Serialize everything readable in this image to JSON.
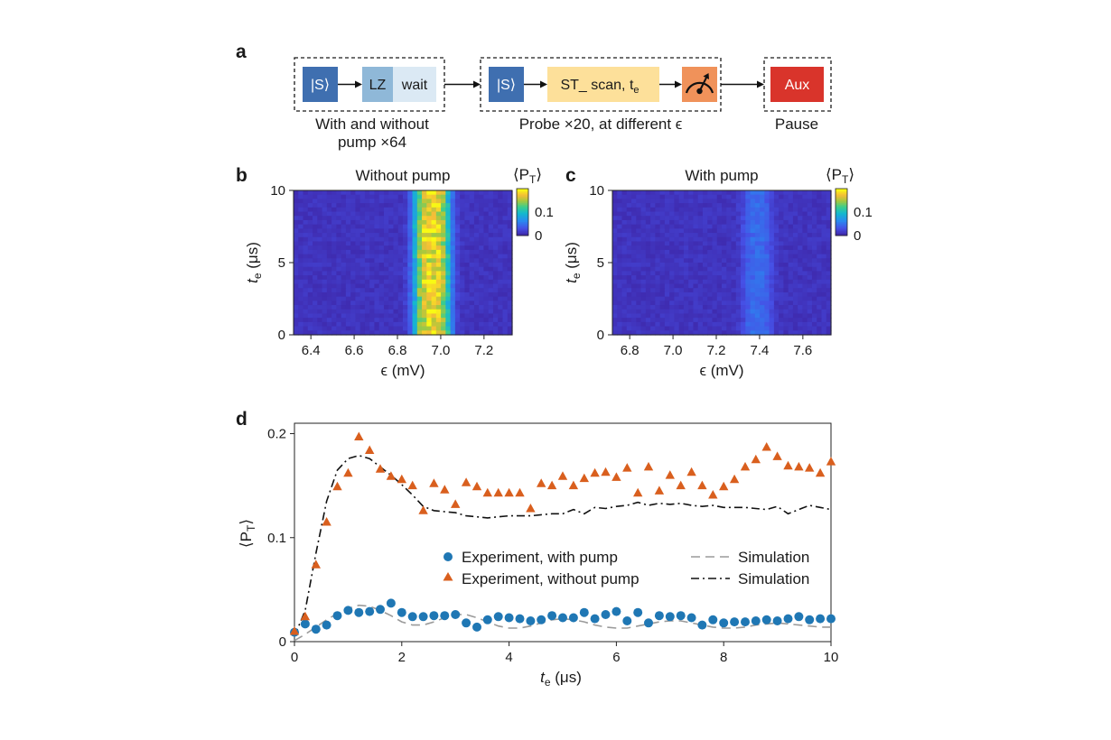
{
  "panel_labels": {
    "a": "a",
    "b": "b",
    "c": "c",
    "d": "d"
  },
  "colors": {
    "s_box": "#3f6fb0",
    "lz_box": "#8fb8d8",
    "wait_box": "#dbe9f4",
    "st_box": "#fde09a",
    "meas_box": "#f0925a",
    "aux_box": "#d9342b",
    "with_pump": "#1f77b4",
    "without_pump": "#d95f1e",
    "sim_with": "#9a9a9a",
    "sim_without": "#111111"
  },
  "schematic": {
    "s_label": "|S⟩",
    "lz_label": "LZ",
    "wait_label": "wait",
    "st_label_main": "ST_ scan, t",
    "st_label_sub": "e",
    "aux_label": "Aux",
    "caption1_line1": "With and without",
    "caption1_line2": "pump ×64",
    "caption2": "Probe ×20, at different ϵ",
    "caption3": "Pause"
  },
  "chart_data": [
    {
      "id": "b",
      "type": "heatmap",
      "title": "Without pump",
      "xlabel": "ϵ (mV)",
      "ylabel_main": "t",
      "ylabel_sub": "e",
      "ylabel_unit": " (μs)",
      "xlim": [
        6.32,
        7.33
      ],
      "ylim": [
        0,
        10
      ],
      "xticks": [
        "6.4",
        "6.6",
        "6.8",
        "7.0",
        "7.2"
      ],
      "xtick_values": [
        6.4,
        6.6,
        6.8,
        7.0,
        7.2
      ],
      "yticks": [
        "0",
        "5",
        "10"
      ],
      "ytick_values": [
        0,
        5,
        10
      ],
      "colorbar_title": "⟨P",
      "colorbar_sub": "T",
      "colorbar_close": "⟩",
      "colorbar_ticks": [
        "0",
        "0.1"
      ],
      "colorbar_tick_values": [
        0,
        0.1
      ],
      "colorbar_range": [
        0,
        0.2
      ],
      "peak_center": 6.96,
      "peak_width": 0.085,
      "peak_amplitude": 0.17
    },
    {
      "id": "c",
      "type": "heatmap",
      "title": "With pump",
      "xlabel": "ϵ (mV)",
      "ylabel_main": "t",
      "ylabel_sub": "e",
      "ylabel_unit": " (μs)",
      "xlim": [
        6.72,
        7.73
      ],
      "ylim": [
        0,
        10
      ],
      "xticks": [
        "6.8",
        "7.0",
        "7.2",
        "7.4",
        "7.6"
      ],
      "xtick_values": [
        6.8,
        7.0,
        7.2,
        7.4,
        7.6
      ],
      "yticks": [
        "0",
        "5",
        "10"
      ],
      "ytick_values": [
        0,
        5,
        10
      ],
      "colorbar_title": "⟨P",
      "colorbar_sub": "T",
      "colorbar_close": "⟩",
      "colorbar_ticks": [
        "0",
        "0.1"
      ],
      "colorbar_tick_values": [
        0,
        0.1
      ],
      "colorbar_range": [
        0,
        0.2
      ],
      "peak_center": 7.39,
      "peak_width": 0.07,
      "peak_amplitude": 0.035
    },
    {
      "id": "d",
      "type": "scatter",
      "xlabel_main": "t",
      "xlabel_sub": "e",
      "xlabel_unit": " (μs)",
      "ylabel_main": "⟨P",
      "ylabel_sub": "T",
      "ylabel_close": "⟩",
      "xlim": [
        0,
        10
      ],
      "ylim": [
        0,
        0.21
      ],
      "xticks": [
        "0",
        "2",
        "4",
        "6",
        "8",
        "10"
      ],
      "xtick_values": [
        0,
        2,
        4,
        6,
        8,
        10
      ],
      "yticks": [
        "0",
        "0.1",
        "0.2"
      ],
      "ytick_values": [
        0,
        0.1,
        0.2
      ],
      "legend": {
        "with_pump": "Experiment, with pump",
        "without_pump": "Experiment, without pump",
        "sim1": "Simulation",
        "sim2": "Simulation"
      },
      "series": [
        {
          "name": "Experiment, with pump",
          "marker": "circle",
          "x": [
            0,
            0.2,
            0.4,
            0.6,
            0.8,
            1.0,
            1.2,
            1.4,
            1.6,
            1.8,
            2.0,
            2.2,
            2.4,
            2.6,
            2.8,
            3.0,
            3.2,
            3.4,
            3.6,
            3.8,
            4.0,
            4.2,
            4.4,
            4.6,
            4.8,
            5.0,
            5.2,
            5.4,
            5.6,
            5.8,
            6.0,
            6.2,
            6.4,
            6.6,
            6.8,
            7.0,
            7.2,
            7.4,
            7.6,
            7.8,
            8.0,
            8.2,
            8.4,
            8.6,
            8.8,
            9.0,
            9.2,
            9.4,
            9.6,
            9.8,
            10.0
          ],
          "y": [
            0.009,
            0.017,
            0.012,
            0.016,
            0.025,
            0.03,
            0.028,
            0.029,
            0.031,
            0.037,
            0.028,
            0.024,
            0.024,
            0.025,
            0.025,
            0.026,
            0.018,
            0.014,
            0.021,
            0.024,
            0.023,
            0.022,
            0.02,
            0.021,
            0.025,
            0.023,
            0.023,
            0.028,
            0.022,
            0.026,
            0.029,
            0.02,
            0.028,
            0.018,
            0.025,
            0.024,
            0.025,
            0.023,
            0.016,
            0.021,
            0.018,
            0.019,
            0.019,
            0.02,
            0.021,
            0.02,
            0.022,
            0.024,
            0.021,
            0.022,
            0.022
          ]
        },
        {
          "name": "Experiment, without pump",
          "marker": "triangle",
          "x": [
            0,
            0.2,
            0.4,
            0.6,
            0.8,
            1.0,
            1.2,
            1.4,
            1.6,
            1.8,
            2.0,
            2.2,
            2.4,
            2.6,
            2.8,
            3.0,
            3.2,
            3.4,
            3.6,
            3.8,
            4.0,
            4.2,
            4.4,
            4.6,
            4.8,
            5.0,
            5.2,
            5.4,
            5.6,
            5.8,
            6.0,
            6.2,
            6.4,
            6.6,
            6.8,
            7.0,
            7.2,
            7.4,
            7.6,
            7.8,
            8.0,
            8.2,
            8.4,
            8.6,
            8.8,
            9.0,
            9.2,
            9.4,
            9.6,
            9.8,
            10.0
          ],
          "y": [
            0.01,
            0.024,
            0.074,
            0.115,
            0.149,
            0.162,
            0.197,
            0.184,
            0.166,
            0.159,
            0.156,
            0.15,
            0.126,
            0.152,
            0.146,
            0.132,
            0.153,
            0.149,
            0.143,
            0.143,
            0.143,
            0.143,
            0.128,
            0.152,
            0.15,
            0.159,
            0.15,
            0.157,
            0.162,
            0.163,
            0.158,
            0.167,
            0.143,
            0.168,
            0.145,
            0.16,
            0.15,
            0.163,
            0.15,
            0.141,
            0.149,
            0.156,
            0.168,
            0.175,
            0.187,
            0.178,
            0.169,
            0.168,
            0.167,
            0.162,
            0.173
          ]
        },
        {
          "name": "Simulation",
          "style": "dashed",
          "x": [
            0,
            0.2,
            0.4,
            0.6,
            0.8,
            1.0,
            1.2,
            1.4,
            1.6,
            1.8,
            2.0,
            2.2,
            2.4,
            2.6,
            2.8,
            3.0,
            3.2,
            3.4,
            3.6,
            3.8,
            4.0,
            4.2,
            4.4,
            4.6,
            4.8,
            5.0,
            5.2,
            5.4,
            5.6,
            5.8,
            6.0,
            6.2,
            6.4,
            6.6,
            6.8,
            7.0,
            7.2,
            7.4,
            7.6,
            7.8,
            8.0,
            8.2,
            8.4,
            8.6,
            8.8,
            9.0,
            9.2,
            9.4,
            9.6,
            9.8,
            10.0
          ],
          "y": [
            0.001,
            0.007,
            0.014,
            0.021,
            0.027,
            0.032,
            0.035,
            0.034,
            0.03,
            0.025,
            0.019,
            0.016,
            0.016,
            0.019,
            0.023,
            0.026,
            0.026,
            0.023,
            0.019,
            0.015,
            0.013,
            0.013,
            0.015,
            0.018,
            0.021,
            0.022,
            0.021,
            0.019,
            0.016,
            0.014,
            0.013,
            0.013,
            0.015,
            0.017,
            0.019,
            0.02,
            0.02,
            0.018,
            0.016,
            0.014,
            0.013,
            0.013,
            0.014,
            0.016,
            0.017,
            0.018,
            0.017,
            0.016,
            0.015,
            0.014,
            0.014
          ]
        },
        {
          "name": "Simulation",
          "style": "dashdot",
          "x": [
            0,
            0.2,
            0.4,
            0.6,
            0.8,
            1.0,
            1.2,
            1.4,
            1.6,
            1.8,
            2.0,
            2.2,
            2.4,
            2.6,
            2.8,
            3.0,
            3.2,
            3.4,
            3.6,
            3.8,
            4.0,
            4.2,
            4.4,
            4.6,
            4.8,
            5.0,
            5.2,
            5.4,
            5.6,
            5.8,
            6.0,
            6.2,
            6.4,
            6.6,
            6.8,
            7.0,
            7.2,
            7.4,
            7.6,
            7.8,
            8.0,
            8.2,
            8.4,
            8.6,
            8.8,
            9.0,
            9.2,
            9.4,
            9.6,
            9.8,
            10.0
          ],
          "y": [
            0.005,
            0.03,
            0.085,
            0.135,
            0.165,
            0.176,
            0.179,
            0.176,
            0.168,
            0.16,
            0.151,
            0.141,
            0.13,
            0.126,
            0.125,
            0.124,
            0.121,
            0.12,
            0.119,
            0.12,
            0.121,
            0.121,
            0.121,
            0.122,
            0.123,
            0.123,
            0.127,
            0.123,
            0.129,
            0.128,
            0.13,
            0.131,
            0.134,
            0.131,
            0.133,
            0.132,
            0.133,
            0.131,
            0.13,
            0.131,
            0.129,
            0.129,
            0.129,
            0.128,
            0.127,
            0.13,
            0.123,
            0.127,
            0.131,
            0.129,
            0.127
          ]
        }
      ]
    }
  ]
}
